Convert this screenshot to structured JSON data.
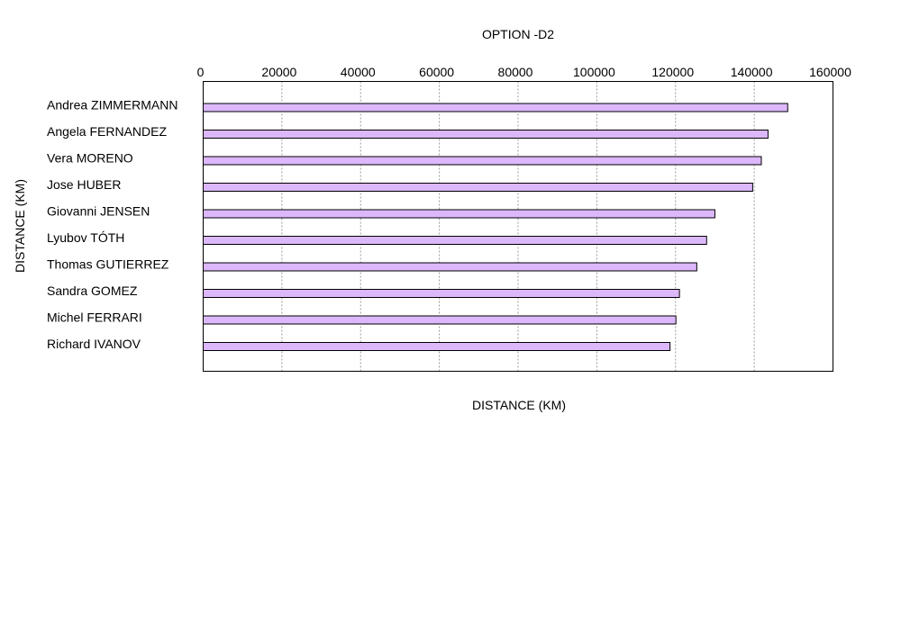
{
  "chart_data": {
    "type": "bar",
    "orientation": "horizontal",
    "title": "OPTION -D2",
    "xlabel": "DISTANCE (KM)",
    "ylabel": "DISTANCE (KM)",
    "xlim": [
      0,
      160000
    ],
    "x_ticks": [
      "0",
      "20000",
      "40000",
      "60000",
      "80000",
      "100000",
      "120000",
      "140000",
      "160000"
    ],
    "x_tick_values": [
      0,
      20000,
      40000,
      60000,
      80000,
      100000,
      120000,
      140000,
      160000
    ],
    "x_axis_position": "top",
    "grid": true,
    "bar_color": "#dcb8fb",
    "categories": [
      "Andrea ZIMMERMANN",
      "Angela FERNANDEZ",
      "Vera MORENO",
      "Jose HUBER",
      "Giovanni JENSEN",
      "Lyubov TÓTH",
      "Thomas GUTIERREZ",
      "Sandra GOMEZ",
      "Michel FERRARI",
      "Richard IVANOV"
    ],
    "values": [
      148500,
      143500,
      141800,
      139600,
      130000,
      127900,
      125400,
      121000,
      120100,
      118600
    ]
  }
}
